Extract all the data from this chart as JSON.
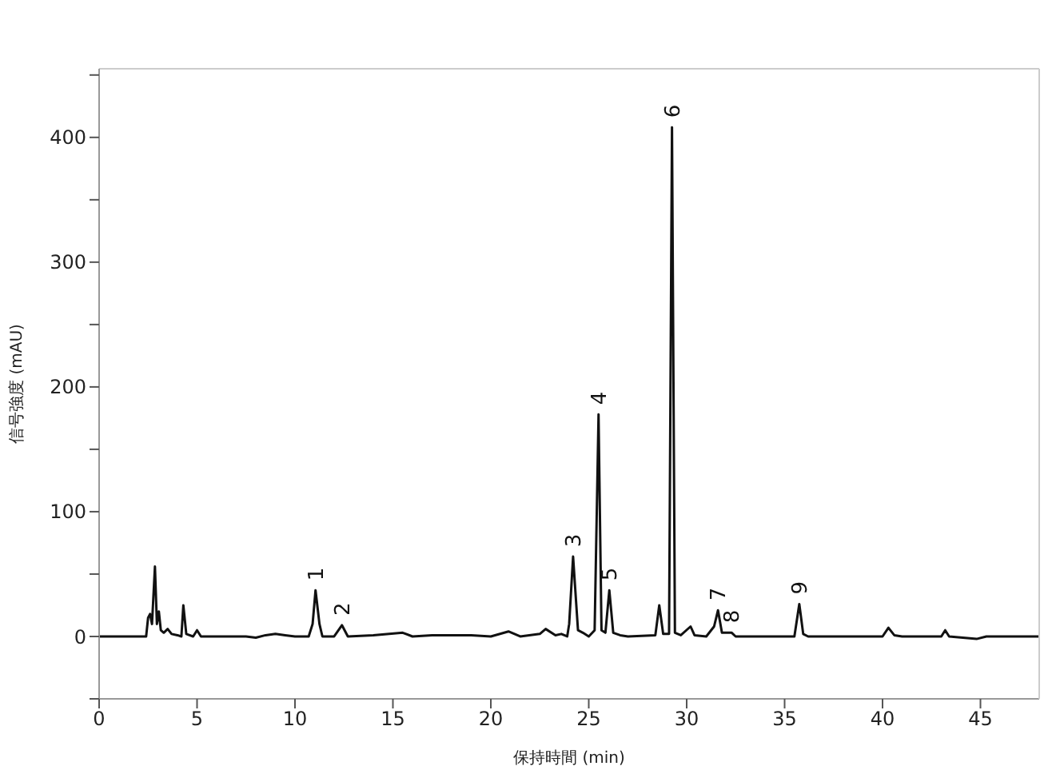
{
  "chart_data": {
    "type": "line",
    "xlabel": "保持時間 (min)",
    "ylabel": "信号強度 (mAU)",
    "xlim": [
      0,
      48
    ],
    "xticks": [
      0,
      5,
      10,
      15,
      20,
      25,
      30,
      35,
      40,
      45
    ],
    "ylim": [
      -50,
      455
    ],
    "yticks": [
      {
        "value": -50,
        "label": null
      },
      0,
      {
        "value": 50,
        "label": null
      },
      100,
      {
        "value": 150,
        "label": null
      },
      200,
      {
        "value": 250,
        "label": null
      },
      300,
      {
        "value": 350,
        "label": null
      },
      400,
      {
        "value": 450,
        "label": null
      }
    ],
    "marker": "none",
    "line_style": "solid",
    "x": [
      0,
      2.4,
      2.5,
      2.6,
      2.7,
      2.85,
      2.95,
      3.05,
      3.15,
      3.3,
      3.5,
      3.7,
      4.0,
      4.2,
      4.3,
      4.45,
      4.8,
      5.0,
      5.2,
      7.5,
      8.0,
      8.5,
      9.0,
      9.5,
      10,
      10.7,
      10.9,
      11.05,
      11.25,
      11.4,
      12.0,
      12.4,
      12.7,
      14,
      15.5,
      16,
      17,
      19,
      20,
      20.9,
      21.5,
      22.5,
      22.8,
      23.3,
      23.6,
      23.9,
      24.0,
      24.2,
      24.45,
      24.7,
      25.0,
      25.3,
      25.5,
      25.65,
      25.85,
      26.05,
      26.25,
      26.6,
      27,
      28.4,
      28.6,
      28.8,
      29.1,
      29.25,
      29.4,
      29.7,
      30.2,
      30.4,
      31.0,
      31.4,
      31.6,
      31.8,
      32.3,
      32.5,
      35.5,
      35.75,
      35.95,
      36.2,
      40,
      40.3,
      40.6,
      41,
      43,
      43.2,
      43.4,
      44.8,
      45.3,
      48
    ],
    "series": [
      {
        "color": "#111111",
        "values": [
          0,
          0,
          15,
          18,
          10,
          56,
          10,
          20,
          5,
          3,
          6,
          2,
          1,
          0,
          25,
          2,
          0,
          5,
          0,
          0,
          -1,
          1,
          2,
          1,
          0,
          0,
          10,
          37,
          10,
          0,
          0,
          9,
          0,
          1,
          3,
          0,
          1,
          1,
          0,
          4,
          0,
          2,
          6,
          1,
          2,
          0,
          10,
          64,
          5,
          3,
          0,
          5,
          178,
          5,
          3,
          37,
          3,
          1,
          0,
          1,
          25,
          2,
          2,
          408,
          3,
          1,
          8,
          1,
          0,
          8,
          21,
          3,
          3,
          0,
          0,
          26,
          2,
          0,
          0,
          7,
          1,
          0,
          0,
          5,
          0,
          -2,
          0,
          0
        ]
      }
    ],
    "annotations": [
      {
        "text": "1",
        "x": 11.05,
        "y": 37
      },
      {
        "text": "2",
        "x": 12.4,
        "y": 9
      },
      {
        "text": "3",
        "x": 24.2,
        "y": 64
      },
      {
        "text": "4",
        "x": 25.5,
        "y": 178
      },
      {
        "text": "5",
        "x": 26.05,
        "y": 37
      },
      {
        "text": "6",
        "x": 29.25,
        "y": 408
      },
      {
        "text": "7",
        "x": 31.6,
        "y": 21
      },
      {
        "text": "8",
        "x": 32.3,
        "y": 3
      },
      {
        "text": "9",
        "x": 35.75,
        "y": 26
      }
    ]
  }
}
